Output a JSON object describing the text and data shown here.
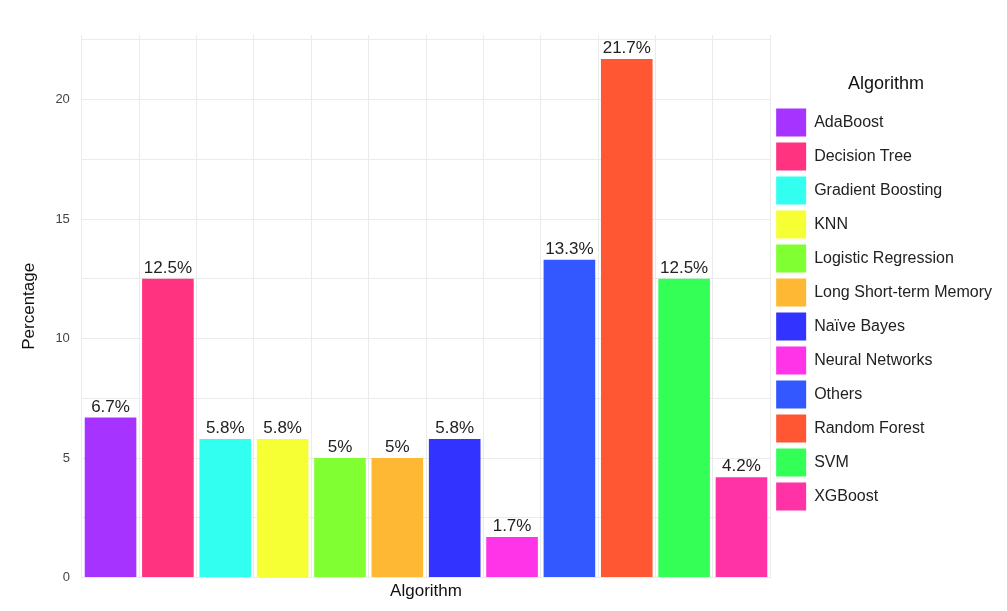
{
  "chart_data": {
    "type": "bar",
    "stacked": true,
    "categories": [
      null,
      null,
      null,
      null,
      null,
      null,
      null,
      null,
      null,
      null,
      null,
      null
    ],
    "series": [
      {
        "name": "AdaBoost",
        "color": "#a633ff",
        "values": [
          6.7,
          null,
          null,
          null,
          null,
          null,
          null,
          null,
          null,
          null,
          null,
          null
        ],
        "value_labels": [
          "6.7%",
          null,
          null,
          null,
          null,
          null,
          null,
          null,
          null,
          null,
          null,
          null
        ]
      },
      {
        "name": "Decision Tree",
        "color": "#ff3380",
        "values": [
          null,
          12.5,
          null,
          null,
          null,
          null,
          null,
          null,
          null,
          null,
          null,
          null
        ],
        "value_labels": [
          null,
          "12.5%",
          null,
          null,
          null,
          null,
          null,
          null,
          null,
          null,
          null,
          null
        ]
      },
      {
        "name": "Gradient Boosting",
        "color": "#33fff0",
        "values": [
          null,
          null,
          5.8,
          null,
          null,
          null,
          null,
          null,
          null,
          null,
          null,
          null
        ],
        "value_labels": [
          null,
          null,
          "5.8%",
          null,
          null,
          null,
          null,
          null,
          null,
          null,
          null,
          null
        ]
      },
      {
        "name": "KNN",
        "color": "#f5ff33",
        "values": [
          null,
          null,
          null,
          5.8,
          null,
          null,
          null,
          null,
          null,
          null,
          null,
          null
        ],
        "value_labels": [
          null,
          null,
          null,
          "5.8%",
          null,
          null,
          null,
          null,
          null,
          null,
          null,
          null
        ]
      },
      {
        "name": "Logistic Regression",
        "color": "#80ff33",
        "values": [
          null,
          null,
          null,
          null,
          5,
          null,
          null,
          null,
          null,
          null,
          null,
          null
        ],
        "value_labels": [
          null,
          null,
          null,
          null,
          "5%",
          null,
          null,
          null,
          null,
          null,
          null,
          null
        ]
      },
      {
        "name": "Long Short-term Memory",
        "color": "#ffb833",
        "values": [
          null,
          null,
          null,
          null,
          null,
          5,
          null,
          null,
          null,
          null,
          null,
          null
        ],
        "value_labels": [
          null,
          null,
          null,
          null,
          null,
          "5%",
          null,
          null,
          null,
          null,
          null,
          null
        ]
      },
      {
        "name": "Naïve Bayes",
        "color": "#3333ff",
        "values": [
          null,
          null,
          null,
          null,
          null,
          null,
          5.8,
          null,
          null,
          null,
          null,
          null
        ],
        "value_labels": [
          null,
          null,
          null,
          null,
          null,
          null,
          "5.8%",
          null,
          null,
          null,
          null,
          null
        ]
      },
      {
        "name": "Neural Networks",
        "color": "#ff33e8",
        "values": [
          null,
          null,
          null,
          null,
          null,
          null,
          null,
          1.7,
          null,
          null,
          null,
          null
        ],
        "value_labels": [
          null,
          null,
          null,
          null,
          null,
          null,
          null,
          "1.7%",
          null,
          null,
          null,
          null
        ]
      },
      {
        "name": "Others",
        "color": "#3358ff",
        "values": [
          null,
          null,
          null,
          null,
          null,
          null,
          null,
          null,
          13.3,
          null,
          null,
          null
        ],
        "value_labels": [
          null,
          null,
          null,
          null,
          null,
          null,
          null,
          null,
          "13.3%",
          null,
          null,
          null
        ]
      },
      {
        "name": "Random Forest",
        "color": "#ff5733",
        "values": [
          null,
          null,
          null,
          null,
          null,
          null,
          null,
          null,
          null,
          21.7,
          null,
          null
        ],
        "value_labels": [
          null,
          null,
          null,
          null,
          null,
          null,
          null,
          null,
          null,
          "21.7%",
          null,
          null
        ]
      },
      {
        "name": "SVM",
        "color": "#33ff57",
        "values": [
          null,
          null,
          null,
          null,
          null,
          null,
          null,
          null,
          null,
          null,
          12.5,
          null
        ],
        "value_labels": [
          null,
          null,
          null,
          null,
          null,
          null,
          null,
          null,
          null,
          null,
          "12.5%",
          null
        ]
      },
      {
        "name": "XGBoost",
        "color": "#ff33a6",
        "values": [
          null,
          null,
          null,
          null,
          null,
          null,
          null,
          null,
          null,
          null,
          null,
          4.2
        ],
        "value_labels": [
          null,
          null,
          null,
          null,
          null,
          null,
          null,
          null,
          null,
          null,
          null,
          "4.2%"
        ]
      }
    ],
    "xlabel": "Algorithm",
    "ylabel": "Percentage",
    "legend_title": "Algorithm",
    "legend": "right",
    "ylim": [
      0,
      22.7
    ],
    "yticks": [
      0,
      {
        "value": 2.5,
        "label": null
      },
      5,
      {
        "value": 7.5,
        "label": null
      },
      10,
      {
        "value": 12.5,
        "label": null
      },
      15,
      {
        "value": 17.5,
        "label": null
      },
      20,
      {
        "value": 22.5,
        "label": null
      }
    ],
    "tick_labels": "y",
    "grid": true
  }
}
